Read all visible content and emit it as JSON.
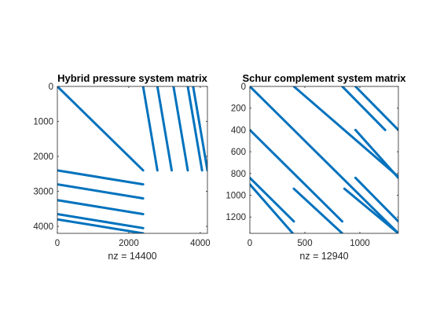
{
  "chart_data": [
    {
      "type": "spy",
      "title": "Hybrid pressure system matrix",
      "xlabel": "nz = 14400",
      "xlim": [
        0,
        4200
      ],
      "ylim": [
        0,
        4200
      ],
      "y_reversed": true,
      "xticks": [
        0,
        2000,
        4000
      ],
      "xtick_labels": [
        "0",
        "2000",
        "4000"
      ],
      "yticks": [
        0,
        1000,
        2000,
        3000,
        4000
      ],
      "ytick_labels": [
        "0",
        "1000",
        "2000",
        "3000",
        "4000"
      ],
      "color": "#0072bd",
      "segments": [
        {
          "x0": 0,
          "y0": 0,
          "x1": 2400,
          "y1": 2400
        },
        {
          "x0": 2400,
          "y0": 0,
          "x1": 2800,
          "y1": 2400
        },
        {
          "x0": 2800,
          "y0": 0,
          "x1": 3200,
          "y1": 2400
        },
        {
          "x0": 3250,
          "y0": 0,
          "x1": 3650,
          "y1": 2400
        },
        {
          "x0": 3650,
          "y0": 0,
          "x1": 4050,
          "y1": 2400
        },
        {
          "x0": 3800,
          "y0": 0,
          "x1": 4200,
          "y1": 2400
        },
        {
          "x0": 0,
          "y0": 2400,
          "x1": 2400,
          "y1": 2800
        },
        {
          "x0": 0,
          "y0": 2800,
          "x1": 2400,
          "y1": 3200
        },
        {
          "x0": 0,
          "y0": 3250,
          "x1": 2400,
          "y1": 3650
        },
        {
          "x0": 0,
          "y0": 3650,
          "x1": 2400,
          "y1": 4050
        },
        {
          "x0": 0,
          "y0": 3800,
          "x1": 2400,
          "y1": 4200
        }
      ]
    },
    {
      "type": "spy",
      "title": "Schur complement system matrix",
      "xlabel": "nz = 12940",
      "xlim": [
        0,
        1350
      ],
      "ylim": [
        0,
        1350
      ],
      "y_reversed": true,
      "xticks": [
        0,
        500,
        1000
      ],
      "xtick_labels": [
        "0",
        "500",
        "1000"
      ],
      "yticks": [
        0,
        200,
        400,
        600,
        800,
        1000,
        1200
      ],
      "ytick_labels": [
        "0",
        "200",
        "400",
        "600",
        "800",
        "1000",
        "1200"
      ],
      "color": "#0072bd",
      "segments": [
        {
          "x0": 0,
          "y0": 0,
          "x1": 1350,
          "y1": 1350
        },
        {
          "x0": 400,
          "y0": 0,
          "x1": 1350,
          "y1": 830
        },
        {
          "x0": 840,
          "y0": 0,
          "x1": 1230,
          "y1": 400
        },
        {
          "x0": 960,
          "y0": 0,
          "x1": 1350,
          "y1": 400
        },
        {
          "x0": 0,
          "y0": 400,
          "x1": 840,
          "y1": 1240
        },
        {
          "x0": 960,
          "y0": 400,
          "x1": 1350,
          "y1": 840
        },
        {
          "x0": 0,
          "y0": 840,
          "x1": 400,
          "y1": 1240
        },
        {
          "x0": 0,
          "y0": 900,
          "x1": 390,
          "y1": 1350
        },
        {
          "x0": 400,
          "y0": 940,
          "x1": 840,
          "y1": 1350
        },
        {
          "x0": 860,
          "y0": 940,
          "x1": 1350,
          "y1": 1350
        },
        {
          "x0": 960,
          "y0": 840,
          "x1": 1350,
          "y1": 1240
        }
      ]
    }
  ]
}
